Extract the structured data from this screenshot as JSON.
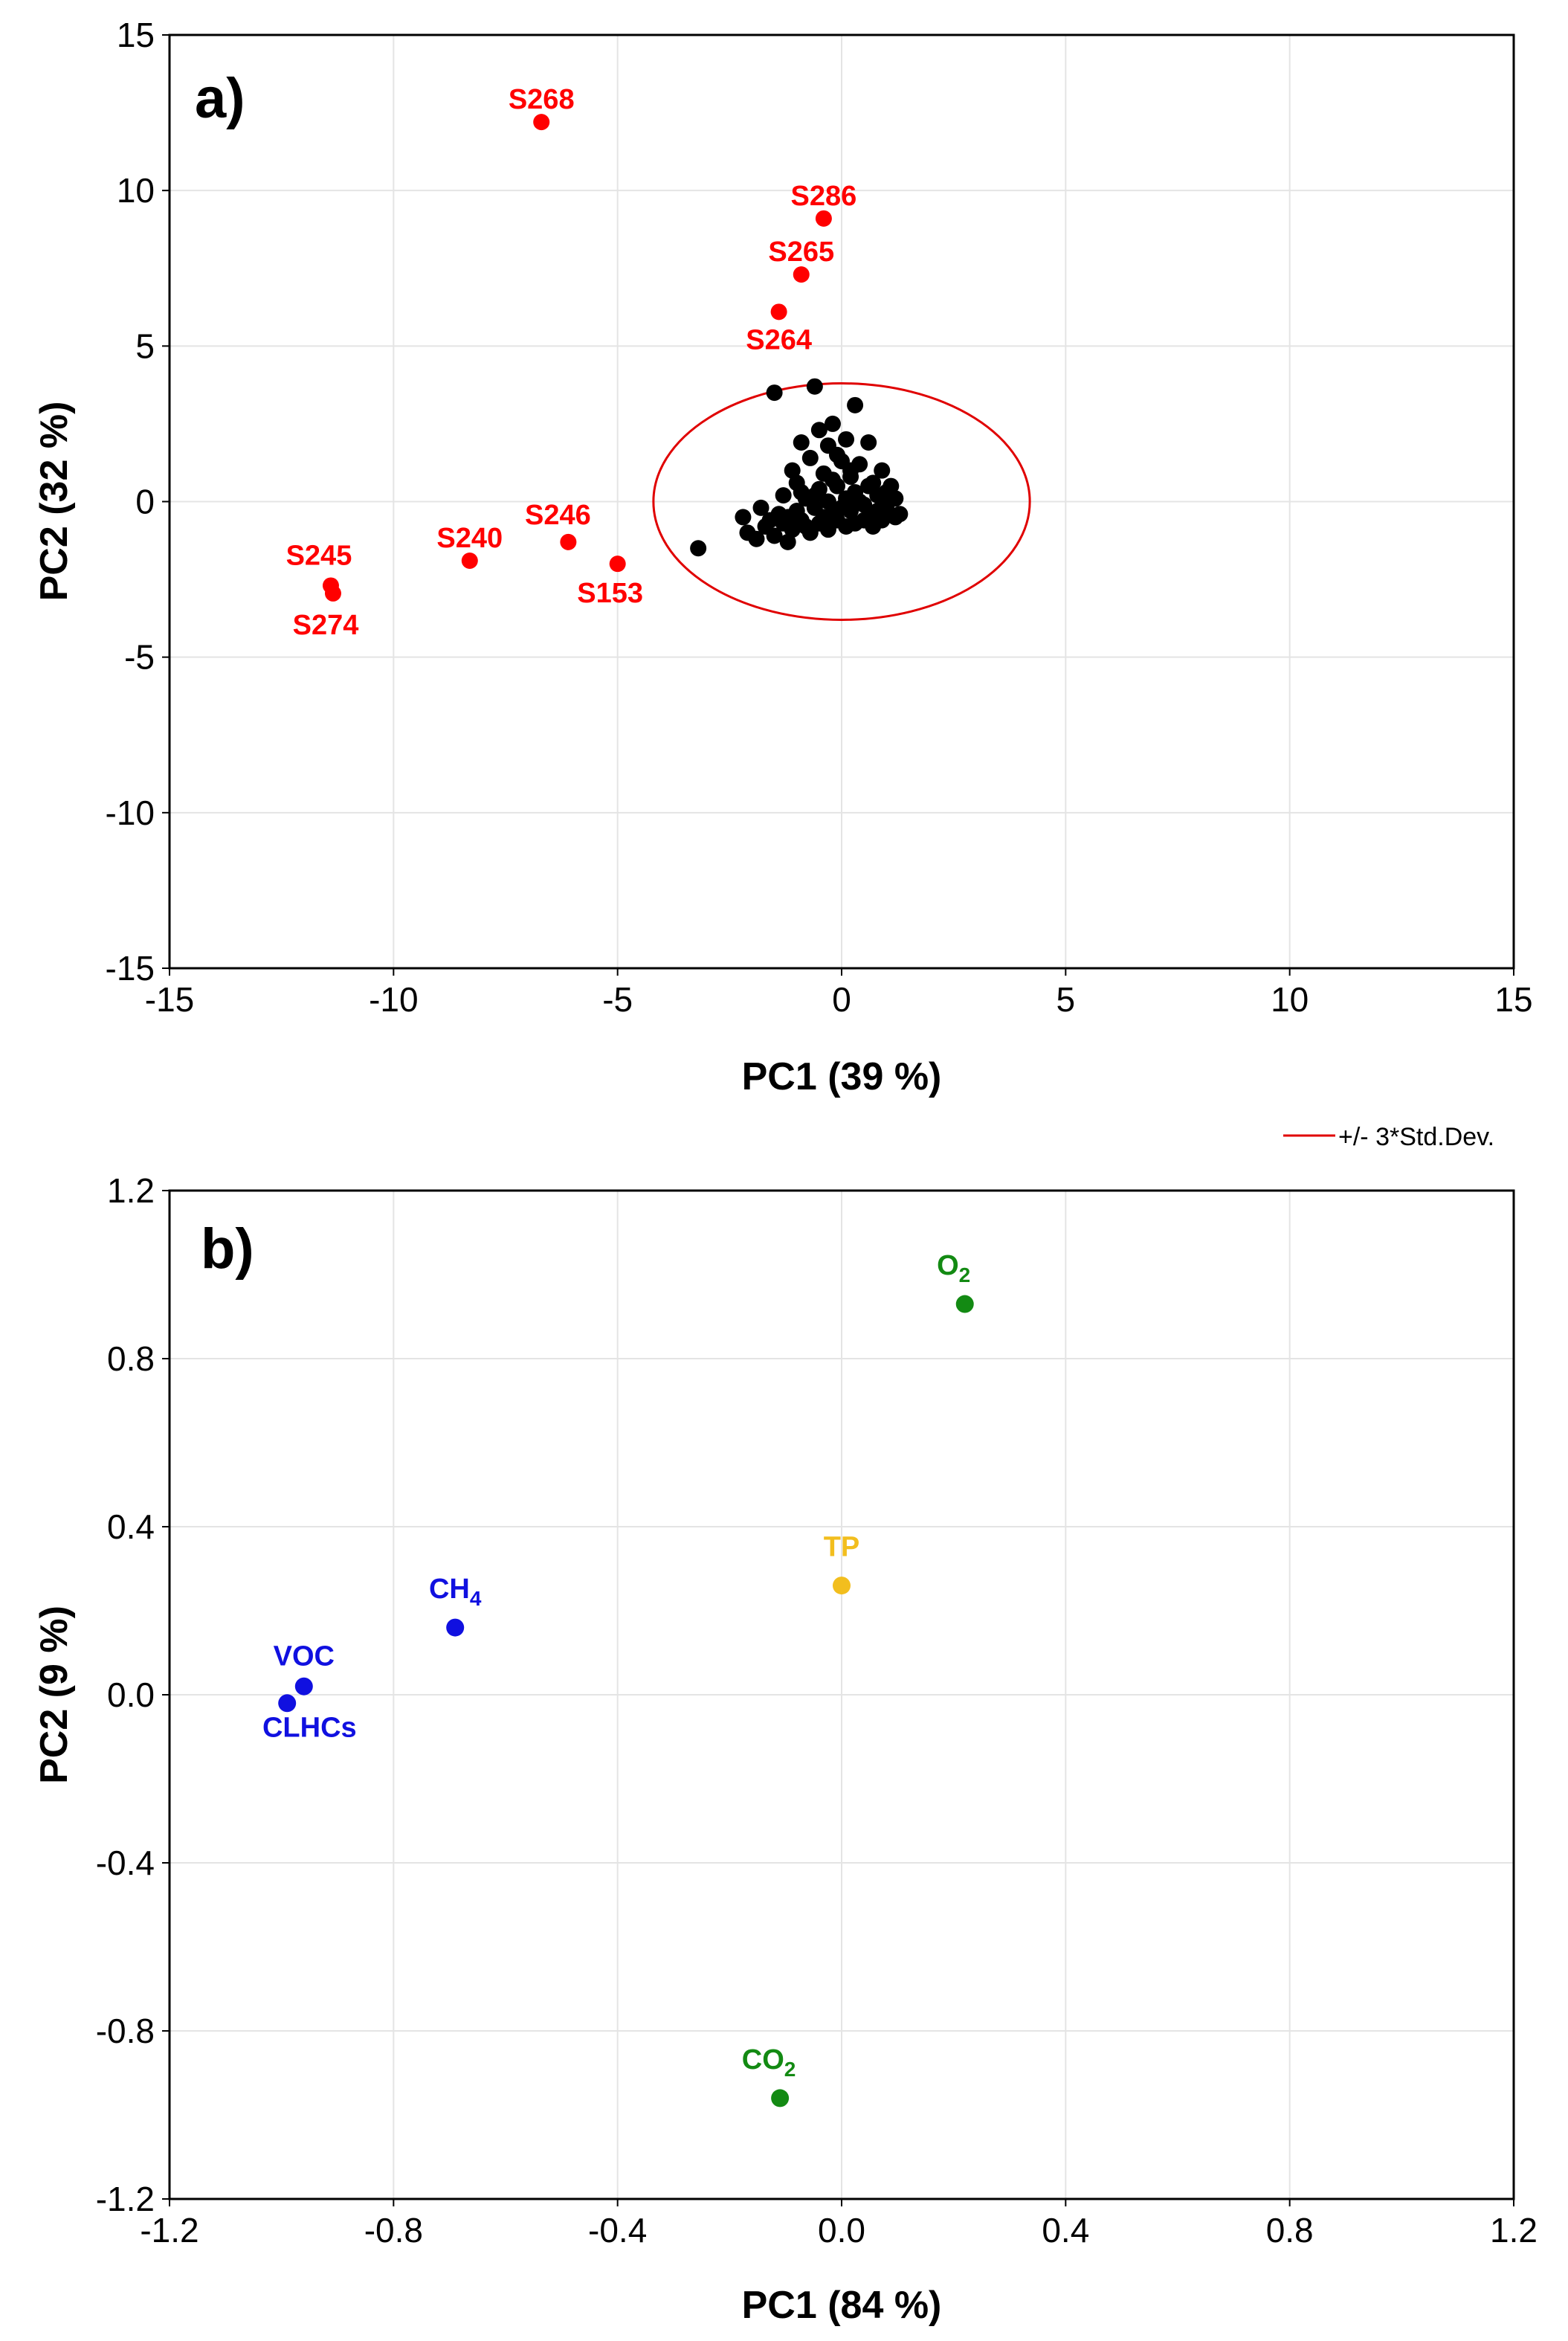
{
  "chart_data": [
    {
      "type": "scatter",
      "panel_label": "a)",
      "title": "",
      "xlabel": "PC1 (39 %)",
      "ylabel": "PC2 (32 %)",
      "xlim": [
        -15,
        15
      ],
      "ylim": [
        -15,
        15
      ],
      "x_ticks": [
        -15,
        -10,
        -5,
        0,
        5,
        10,
        15
      ],
      "y_ticks": [
        -15,
        -10,
        -5,
        0,
        5,
        10,
        15
      ],
      "grid": true,
      "colors": {
        "outlier": "#ff0000",
        "normal": "#000000",
        "ellipse": "#e00000"
      },
      "ellipse": {
        "label": "+/- 3*Std.Dev.",
        "cx": 0,
        "cy": 0,
        "rx": 4.2,
        "ry": 3.8
      },
      "legend_position": "bottom-right (below panel)",
      "outliers": [
        {
          "label": "S268",
          "x": -6.7,
          "y": 12.2
        },
        {
          "label": "S286",
          "x": -0.4,
          "y": 9.1
        },
        {
          "label": "S265",
          "x": -0.9,
          "y": 7.3
        },
        {
          "label": "S264",
          "x": -1.4,
          "y": 6.1
        },
        {
          "label": "S245",
          "x": -11.4,
          "y": -2.7
        },
        {
          "label": "S274",
          "x": -11.35,
          "y": -2.95
        },
        {
          "label": "S240",
          "x": -8.3,
          "y": -1.9
        },
        {
          "label": "S246",
          "x": -6.1,
          "y": -1.3
        },
        {
          "label": "S153",
          "x": -5.0,
          "y": -2.0
        }
      ],
      "points": [
        {
          "x": -3.2,
          "y": -1.5
        },
        {
          "x": -1.5,
          "y": 3.5
        },
        {
          "x": -0.6,
          "y": 3.7
        },
        {
          "x": 0.3,
          "y": 3.1
        },
        {
          "x": -0.5,
          "y": 2.3
        },
        {
          "x": -0.2,
          "y": 2.5
        },
        {
          "x": -0.9,
          "y": 1.9
        },
        {
          "x": -0.3,
          "y": 1.8
        },
        {
          "x": 0.1,
          "y": 2.0
        },
        {
          "x": 0.6,
          "y": 1.9
        },
        {
          "x": -0.7,
          "y": 1.4
        },
        {
          "x": 0.0,
          "y": 1.3
        },
        {
          "x": 0.4,
          "y": 1.2
        },
        {
          "x": 0.9,
          "y": 1.0
        },
        {
          "x": -1.1,
          "y": 1.0
        },
        {
          "x": -0.4,
          "y": 0.9
        },
        {
          "x": 0.2,
          "y": 0.8
        },
        {
          "x": 0.7,
          "y": 0.6
        },
        {
          "x": 1.1,
          "y": 0.5
        },
        {
          "x": -1.0,
          "y": 0.6
        },
        {
          "x": -0.5,
          "y": 0.4
        },
        {
          "x": -0.1,
          "y": 0.5
        },
        {
          "x": 0.3,
          "y": 0.3
        },
        {
          "x": 0.8,
          "y": 0.2
        },
        {
          "x": 1.2,
          "y": 0.1
        },
        {
          "x": -1.3,
          "y": 0.2
        },
        {
          "x": -0.8,
          "y": 0.1
        },
        {
          "x": -0.3,
          "y": 0.0
        },
        {
          "x": 0.1,
          "y": 0.1
        },
        {
          "x": 0.5,
          "y": -0.1
        },
        {
          "x": 1.0,
          "y": -0.2
        },
        {
          "x": 1.3,
          "y": -0.4
        },
        {
          "x": -1.8,
          "y": -0.2
        },
        {
          "x": -1.4,
          "y": -0.4
        },
        {
          "x": -1.0,
          "y": -0.3
        },
        {
          "x": -0.6,
          "y": -0.2
        },
        {
          "x": -0.2,
          "y": -0.4
        },
        {
          "x": 0.2,
          "y": -0.3
        },
        {
          "x": 0.6,
          "y": -0.5
        },
        {
          "x": 0.9,
          "y": -0.6
        },
        {
          "x": 1.2,
          "y": -0.5
        },
        {
          "x": -2.1,
          "y": -1.0
        },
        {
          "x": -1.7,
          "y": -0.8
        },
        {
          "x": -1.3,
          "y": -0.7
        },
        {
          "x": -0.9,
          "y": -0.6
        },
        {
          "x": -0.5,
          "y": -0.7
        },
        {
          "x": -0.1,
          "y": -0.6
        },
        {
          "x": 0.3,
          "y": -0.7
        },
        {
          "x": 0.7,
          "y": -0.8
        },
        {
          "x": -1.5,
          "y": -1.1
        },
        {
          "x": -1.1,
          "y": -0.9
        },
        {
          "x": -0.7,
          "y": -1.0
        },
        {
          "x": -0.3,
          "y": -0.9
        },
        {
          "x": 0.1,
          "y": -0.8
        },
        {
          "x": 0.5,
          "y": -0.6
        },
        {
          "x": -1.9,
          "y": -1.2
        },
        {
          "x": -1.2,
          "y": -1.3
        },
        {
          "x": -0.8,
          "y": -0.8
        },
        {
          "x": -0.4,
          "y": -0.5
        },
        {
          "x": 0.0,
          "y": -0.2
        },
        {
          "x": 0.4,
          "y": 0.0
        },
        {
          "x": 0.8,
          "y": -0.3
        },
        {
          "x": -0.6,
          "y": 0.2
        },
        {
          "x": -0.2,
          "y": 0.7
        },
        {
          "x": 0.2,
          "y": 1.0
        },
        {
          "x": -1.2,
          "y": -0.5
        },
        {
          "x": -1.6,
          "y": -0.6
        },
        {
          "x": 1.0,
          "y": 0.3
        },
        {
          "x": 0.6,
          "y": 0.5
        },
        {
          "x": -0.9,
          "y": 0.3
        },
        {
          "x": -2.2,
          "y": -0.5
        },
        {
          "x": -0.1,
          "y": 1.5
        }
      ]
    },
    {
      "type": "scatter",
      "panel_label": "b)",
      "title": "",
      "xlabel": "PC1 (84 %)",
      "ylabel": "PC2 (9 %)",
      "xlim": [
        -1.2,
        1.2
      ],
      "ylim": [
        -1.2,
        1.2
      ],
      "x_ticks": [
        -1.2,
        -0.8,
        -0.4,
        0.0,
        0.4,
        0.8,
        1.2
      ],
      "y_ticks": [
        -1.2,
        -0.8,
        -0.4,
        0.0,
        0.4,
        0.8,
        1.2
      ],
      "tick_decimals": 1,
      "grid": true,
      "points": [
        {
          "name": "O",
          "sub": "2",
          "x": 0.22,
          "y": 0.93,
          "color": "#138a13",
          "label_dx": -0.02,
          "label_dy": 0.07
        },
        {
          "name": "TP",
          "sub": "",
          "x": 0.0,
          "y": 0.26,
          "color": "#f2be1e",
          "label_dx": 0.0,
          "label_dy": 0.07
        },
        {
          "name": "CH",
          "sub": "4",
          "x": -0.69,
          "y": 0.16,
          "color": "#1010e0",
          "label_dx": 0.0,
          "label_dy": 0.07
        },
        {
          "name": "VOC",
          "sub": "",
          "x": -0.96,
          "y": 0.02,
          "color": "#1010e0",
          "label_dx": 0.0,
          "label_dy": 0.05
        },
        {
          "name": "CLHCs",
          "sub": "",
          "x": -0.99,
          "y": -0.02,
          "color": "#1010e0",
          "label_dx": 0.04,
          "label_dy": -0.08
        },
        {
          "name": "CO",
          "sub": "2",
          "x": -0.11,
          "y": -0.96,
          "color": "#138a13",
          "label_dx": -0.02,
          "label_dy": 0.07
        }
      ]
    }
  ]
}
